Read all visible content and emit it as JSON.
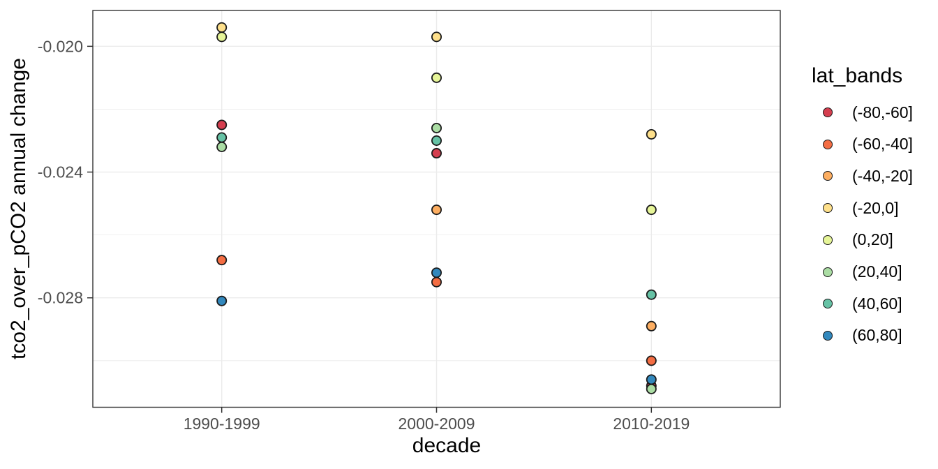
{
  "chart_data": {
    "type": "scatter",
    "title": "",
    "xlabel": "decade",
    "ylabel": "tco2_over_pCO2 annual change",
    "categories": [
      "1990-1999",
      "2000-2009",
      "2010-2019"
    ],
    "y_axis": {
      "tick_labels": [
        "-0.020",
        "-0.024",
        "-0.028"
      ],
      "tick_values": [
        -0.02,
        -0.024,
        -0.028
      ],
      "minor_tick_values": [
        -0.022,
        -0.026,
        -0.03
      ],
      "ylim": [
        -0.03148,
        -0.01886
      ],
      "grid": "on"
    },
    "legend": {
      "title": "lat_bands",
      "position": "right"
    },
    "series": [
      {
        "name": "(-80,-60]",
        "color": "#D53E4F",
        "values": [
          -0.0225,
          -0.0234,
          -0.0308
        ]
      },
      {
        "name": "(-60,-40]",
        "color": "#F46D43",
        "values": [
          -0.0268,
          -0.0275,
          -0.03
        ]
      },
      {
        "name": "(-40,-20]",
        "color": "#FDAE61",
        "values": [
          null,
          -0.0252,
          -0.0289
        ]
      },
      {
        "name": "(-20,0]",
        "color": "#FEE08B",
        "values": [
          -0.0194,
          -0.0197,
          -0.0228
        ]
      },
      {
        "name": "(0,20]",
        "color": "#E6F598",
        "values": [
          -0.0197,
          -0.021,
          -0.0252
        ]
      },
      {
        "name": "(20,40]",
        "color": "#ABDDA4",
        "values": [
          -0.0232,
          -0.0226,
          -0.0309
        ]
      },
      {
        "name": "(40,60]",
        "color": "#66C2A5",
        "values": [
          -0.0229,
          -0.023,
          -0.0279
        ]
      },
      {
        "name": "(60,80]",
        "color": "#3288BD",
        "values": [
          -0.0281,
          -0.0272,
          -0.0306
        ]
      }
    ],
    "colors": {
      "grid": "#EBEBEB",
      "panel_border": "#333333",
      "tick": "#333333",
      "axis_text": "#4D4D4D",
      "title_text": "#000000",
      "point_stroke": "#1A1A1A",
      "background": "#FFFFFF"
    }
  }
}
